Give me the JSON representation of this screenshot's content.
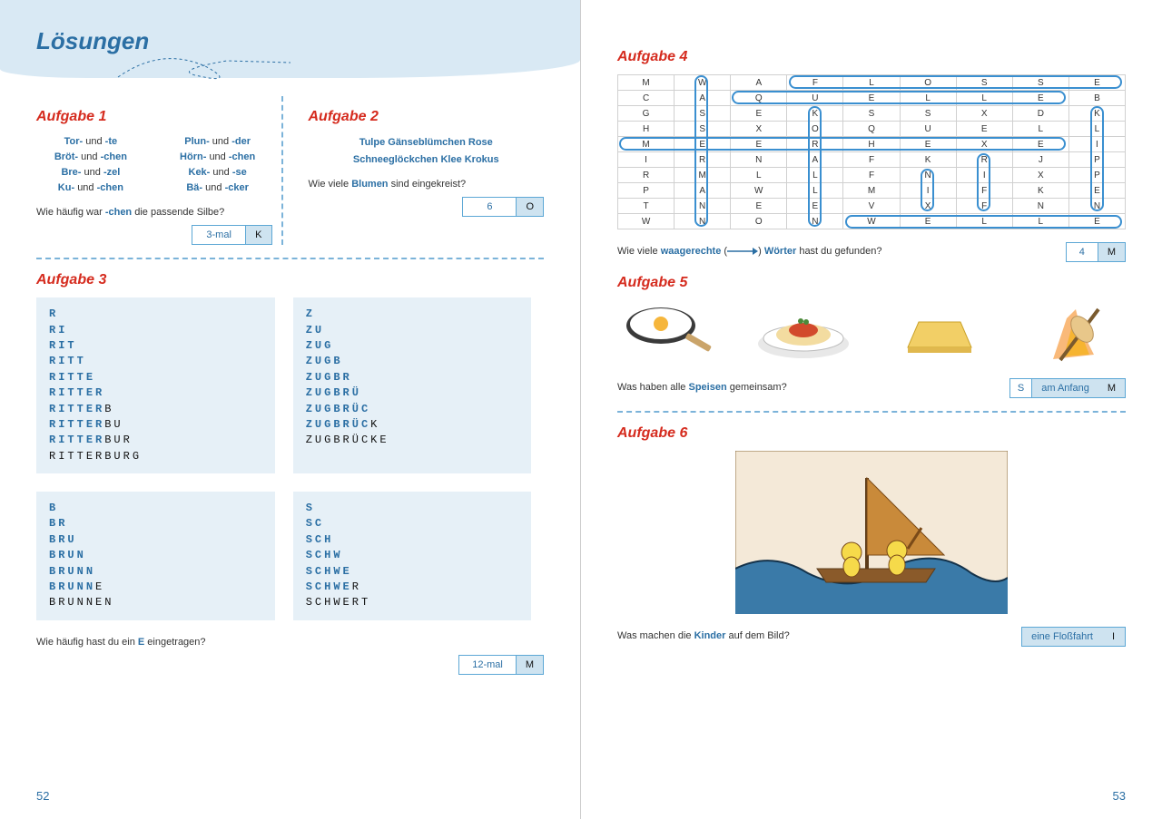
{
  "colors": {
    "accent_blue": "#2b6fa4",
    "heading_red": "#d52b1e",
    "band_bg": "#d9e9f4",
    "pyramid_bg": "#e6f0f7",
    "dash": "#7bb3d9",
    "ring": "#3a8fd0",
    "answer_fill": "#cee3f0",
    "border": "#5ca7d5"
  },
  "left": {
    "title": "Lösungen",
    "page_number": "52",
    "aufgabe1": {
      "heading": "Aufgabe 1",
      "pairs_left": [
        {
          "a": "Tor-",
          "b": "-te"
        },
        {
          "a": "Bröt-",
          "b": "-chen"
        },
        {
          "a": "Bre-",
          "b": "-zel"
        },
        {
          "a": "Ku-",
          "b": "-chen"
        }
      ],
      "pairs_right": [
        {
          "a": "Plun-",
          "b": "-der"
        },
        {
          "a": "Hörn-",
          "b": "-chen"
        },
        {
          "a": "Kek-",
          "b": "-se"
        },
        {
          "a": "Bä-",
          "b": "-cker"
        }
      ],
      "und": "und",
      "question_pre": "Wie häufig war ",
      "question_hl": "-chen",
      "question_post": " die passende Silbe?",
      "answer_value": "3-mal",
      "answer_letter": "K"
    },
    "aufgabe2": {
      "heading": "Aufgabe 2",
      "flowers_line1": "Tulpe   Gänseblümchen   Rose",
      "flowers_line2": "Schneeglöckchen   Klee   Krokus",
      "question_pre": "Wie viele ",
      "question_hl": "Blumen",
      "question_post": " sind eingekreist?",
      "answer_value": "6",
      "answer_letter": "O"
    },
    "aufgabe3": {
      "heading": "Aufgabe 3",
      "pyramids": [
        {
          "word": "RITTERBURG",
          "highlight_len": 6
        },
        {
          "word": "ZUGBRÜCKE",
          "highlight_len": 7
        },
        {
          "word": "BRUNNEN",
          "highlight_len": 5
        },
        {
          "word": "SCHWERT",
          "highlight_len": 5
        }
      ],
      "question_pre": "Wie häufig hast du ein ",
      "question_hl": "E",
      "question_post": " eingetragen?",
      "answer_value": "12-mal",
      "answer_letter": "M"
    }
  },
  "right": {
    "page_number": "53",
    "aufgabe4": {
      "heading": "Aufgabe 4",
      "grid": [
        [
          "M",
          "W",
          "A",
          "F",
          "L",
          "O",
          "S",
          "S",
          "E"
        ],
        [
          "C",
          "A",
          "Q",
          "U",
          "E",
          "L",
          "L",
          "E",
          "B"
        ],
        [
          "G",
          "S",
          "E",
          "K",
          "S",
          "S",
          "X",
          "D",
          "K"
        ],
        [
          "H",
          "S",
          "X",
          "O",
          "Q",
          "U",
          "E",
          "L",
          "L"
        ],
        [
          "M",
          "E",
          "E",
          "R",
          "H",
          "E",
          "X",
          "E",
          "I"
        ],
        [
          "I",
          "R",
          "N",
          "A",
          "F",
          "K",
          "R",
          "J",
          "P"
        ],
        [
          "R",
          "M",
          "L",
          "L",
          "F",
          "N",
          "I",
          "X",
          "P"
        ],
        [
          "P",
          "A",
          "W",
          "L",
          "M",
          "I",
          "F",
          "K",
          "E"
        ],
        [
          "T",
          "N",
          "E",
          "E",
          "V",
          "X",
          "F",
          "N",
          "N"
        ],
        [
          "W",
          "N",
          "O",
          "N",
          "W",
          "E",
          "L",
          "L",
          "E"
        ]
      ],
      "hwords": [
        {
          "row": 0,
          "c1": 3,
          "c2": 8
        },
        {
          "row": 1,
          "c1": 2,
          "c2": 7
        },
        {
          "row": 4,
          "c1": 0,
          "c2": 7
        },
        {
          "row": 9,
          "c1": 4,
          "c2": 8
        }
      ],
      "vwords": [
        {
          "col": 1,
          "r1": 0,
          "r2": 9
        },
        {
          "col": 3,
          "r1": 2,
          "r2": 9
        },
        {
          "col": 5,
          "r1": 6,
          "r2": 8
        },
        {
          "col": 6,
          "r1": 5,
          "r2": 8
        },
        {
          "col": 8,
          "r1": 2,
          "r2": 8
        }
      ],
      "question_pre": "Wie viele ",
      "question_hl1": "waagerechte",
      "question_mid": " (",
      "question_hl2": "Wörter",
      "question_post": " hast du gefunden?",
      "answer_value": "4",
      "answer_letter": "M"
    },
    "aufgabe5": {
      "heading": "Aufgabe 5",
      "question_pre": "Was haben alle ",
      "question_hl": "Speisen",
      "question_post": " gemeinsam?",
      "answer_prefix": "S",
      "answer_text": "am Anfang",
      "answer_letter": "M",
      "foods": [
        "Spiegelei",
        "Spaghetti",
        "Käse/Speck",
        "Stockbrot"
      ]
    },
    "aufgabe6": {
      "heading": "Aufgabe 6",
      "question_pre": "Was machen die ",
      "question_hl": "Kinder",
      "question_post": " auf dem Bild?",
      "answer_text": "eine Floßfahrt",
      "answer_letter": "I"
    }
  }
}
